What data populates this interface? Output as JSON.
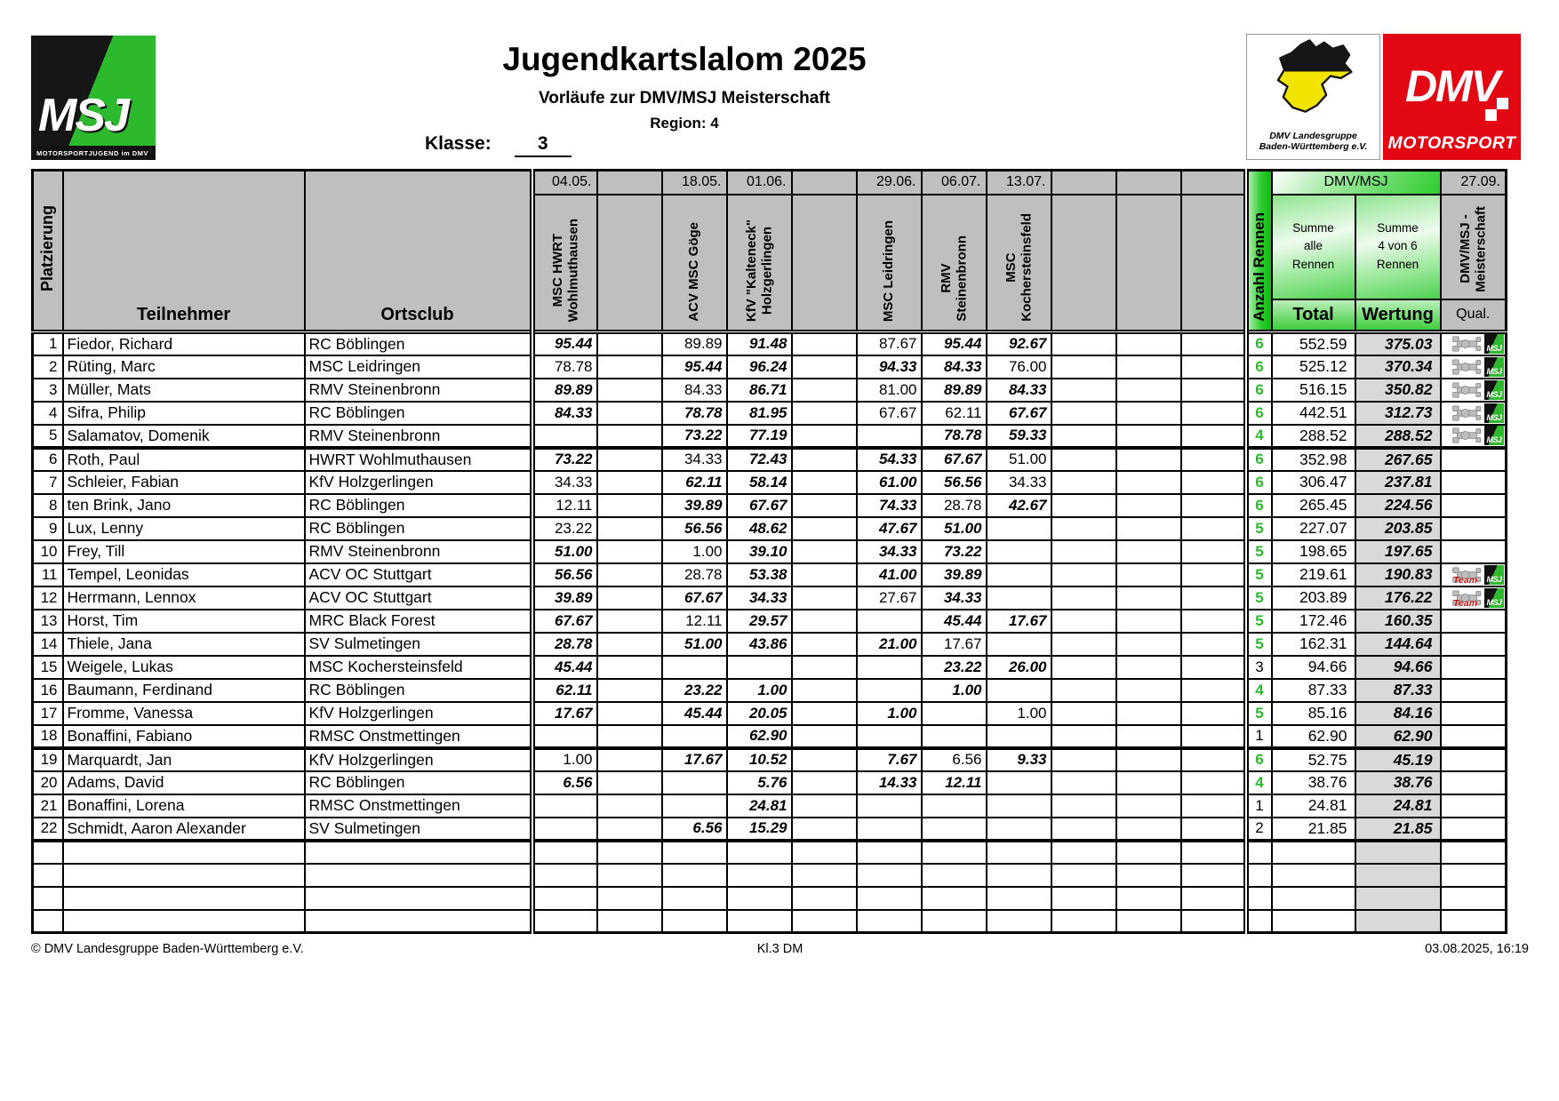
{
  "header": {
    "title": "Jugendkartslalom 2025",
    "subtitle": "Vorläufe zur DMV/MSJ Meisterschaft",
    "region": "Region: 4",
    "klasse_label": "Klasse:",
    "klasse_value": "3",
    "msj_logo": {
      "text": "MSJ",
      "sub": "MOTORSPORTJUGEND im DMV"
    },
    "bw_logo": {
      "line1": "DMV Landesgruppe",
      "line2": "Baden-Württemberg e.V.",
      "colors": {
        "top": "#161616",
        "bottom": "#f0e400"
      }
    },
    "dmv_logo": {
      "text": "DMV",
      "sub": "MOTORSPORT",
      "color": "#e30613"
    }
  },
  "icons": {
    "msj_badge": "MSJ",
    "team_label": "Team"
  },
  "table": {
    "platzierung_label": "Platzierung",
    "teilnehmer_label": "Teilnehmer",
    "ortsclub_label": "Ortsclub",
    "anzahl_label": "Anzahl Rennen",
    "dmvmsj_label": "DMV/MSJ",
    "summe_alle": "Summe\nalle\nRennen",
    "summe_4von6": "Summe\n4 von 6\nRennen",
    "total_label": "Total",
    "wertung_label": "Wertung",
    "last_col": {
      "date": "27.09.",
      "club": "DMV/MSJ -\nMeisterschaft",
      "qual": "Qual."
    },
    "accent_green": "#2db92d",
    "race_columns": [
      {
        "date": "04.05.",
        "club": "MSC HWRT\nWohlmuthausen"
      },
      {
        "date": "",
        "club": ""
      },
      {
        "date": "18.05.",
        "club": "ACV MSC Göge"
      },
      {
        "date": "01.06.",
        "club": "KfV \"Kalteneck\"\nHolzgerlingen"
      },
      {
        "date": "",
        "club": ""
      },
      {
        "date": "29.06.",
        "club": "MSC Leidringen"
      },
      {
        "date": "06.07.",
        "club": "RMV\nSteinenbronn"
      },
      {
        "date": "13.07.",
        "club": "MSC\nKochersteinsfeld"
      },
      {
        "date": "",
        "club": ""
      },
      {
        "date": "",
        "club": ""
      },
      {
        "date": "",
        "club": ""
      }
    ],
    "rows": [
      {
        "rank": "1",
        "name": "Fiedor, Richard",
        "club": "RC Böblingen",
        "scores": [
          {
            "v": "95.44",
            "b": 1
          },
          null,
          {
            "v": "89.89",
            "b": 0
          },
          {
            "v": "91.48",
            "b": 1
          },
          null,
          {
            "v": "87.67",
            "b": 0
          },
          {
            "v": "95.44",
            "b": 1
          },
          {
            "v": "92.67",
            "b": 1
          },
          null,
          null,
          null
        ],
        "races": "6",
        "races_green": 1,
        "total": "552.59",
        "wertung": "375.03",
        "qual": "kart-msj",
        "cutoff": false
      },
      {
        "rank": "2",
        "name": "Rüting, Marc",
        "club": "MSC Leidringen",
        "scores": [
          {
            "v": "78.78",
            "b": 0
          },
          null,
          {
            "v": "95.44",
            "b": 1
          },
          {
            "v": "96.24",
            "b": 1
          },
          null,
          {
            "v": "94.33",
            "b": 1
          },
          {
            "v": "84.33",
            "b": 1
          },
          {
            "v": "76.00",
            "b": 0
          },
          null,
          null,
          null
        ],
        "races": "6",
        "races_green": 1,
        "total": "525.12",
        "wertung": "370.34",
        "qual": "kart-msj",
        "cutoff": false
      },
      {
        "rank": "3",
        "name": "Müller, Mats",
        "club": "RMV Steinenbronn",
        "scores": [
          {
            "v": "89.89",
            "b": 1
          },
          null,
          {
            "v": "84.33",
            "b": 0
          },
          {
            "v": "86.71",
            "b": 1
          },
          null,
          {
            "v": "81.00",
            "b": 0
          },
          {
            "v": "89.89",
            "b": 1
          },
          {
            "v": "84.33",
            "b": 1
          },
          null,
          null,
          null
        ],
        "races": "6",
        "races_green": 1,
        "total": "516.15",
        "wertung": "350.82",
        "qual": "kart-msj",
        "cutoff": false
      },
      {
        "rank": "4",
        "name": "Sifra, Philip",
        "club": "RC Böblingen",
        "scores": [
          {
            "v": "84.33",
            "b": 1
          },
          null,
          {
            "v": "78.78",
            "b": 1
          },
          {
            "v": "81.95",
            "b": 1
          },
          null,
          {
            "v": "67.67",
            "b": 0
          },
          {
            "v": "62.11",
            "b": 0
          },
          {
            "v": "67.67",
            "b": 1
          },
          null,
          null,
          null
        ],
        "races": "6",
        "races_green": 1,
        "total": "442.51",
        "wertung": "312.73",
        "qual": "kart-msj",
        "cutoff": false
      },
      {
        "rank": "5",
        "name": "Salamatov, Domenik",
        "club": "RMV Steinenbronn",
        "scores": [
          null,
          null,
          {
            "v": "73.22",
            "b": 1
          },
          {
            "v": "77.19",
            "b": 1
          },
          null,
          null,
          {
            "v": "78.78",
            "b": 1
          },
          {
            "v": "59.33",
            "b": 1
          },
          null,
          null,
          null
        ],
        "races": "4",
        "races_green": 1,
        "total": "288.52",
        "wertung": "288.52",
        "qual": "kart-msj",
        "cutoff": true
      },
      {
        "rank": "6",
        "name": "Roth, Paul",
        "club": "HWRT Wohlmuthausen",
        "scores": [
          {
            "v": "73.22",
            "b": 1
          },
          null,
          {
            "v": "34.33",
            "b": 0
          },
          {
            "v": "72.43",
            "b": 1
          },
          null,
          {
            "v": "54.33",
            "b": 1
          },
          {
            "v": "67.67",
            "b": 1
          },
          {
            "v": "51.00",
            "b": 0
          },
          null,
          null,
          null
        ],
        "races": "6",
        "races_green": 1,
        "total": "352.98",
        "wertung": "267.65",
        "qual": "",
        "cutoff": false
      },
      {
        "rank": "7",
        "name": "Schleier, Fabian",
        "club": "KfV Holzgerlingen",
        "scores": [
          {
            "v": "34.33",
            "b": 0
          },
          null,
          {
            "v": "62.11",
            "b": 1
          },
          {
            "v": "58.14",
            "b": 1
          },
          null,
          {
            "v": "61.00",
            "b": 1
          },
          {
            "v": "56.56",
            "b": 1
          },
          {
            "v": "34.33",
            "b": 0
          },
          null,
          null,
          null
        ],
        "races": "6",
        "races_green": 1,
        "total": "306.47",
        "wertung": "237.81",
        "qual": "",
        "cutoff": false
      },
      {
        "rank": "8",
        "name": "ten Brink, Jano",
        "club": "RC Böblingen",
        "scores": [
          {
            "v": "12.11",
            "b": 0
          },
          null,
          {
            "v": "39.89",
            "b": 1
          },
          {
            "v": "67.67",
            "b": 1
          },
          null,
          {
            "v": "74.33",
            "b": 1
          },
          {
            "v": "28.78",
            "b": 0
          },
          {
            "v": "42.67",
            "b": 1
          },
          null,
          null,
          null
        ],
        "races": "6",
        "races_green": 1,
        "total": "265.45",
        "wertung": "224.56",
        "qual": "",
        "cutoff": false
      },
      {
        "rank": "9",
        "name": "Lux, Lenny",
        "club": "RC Böblingen",
        "scores": [
          {
            "v": "23.22",
            "b": 0
          },
          null,
          {
            "v": "56.56",
            "b": 1
          },
          {
            "v": "48.62",
            "b": 1
          },
          null,
          {
            "v": "47.67",
            "b": 1
          },
          {
            "v": "51.00",
            "b": 1
          },
          null,
          null,
          null,
          null
        ],
        "races": "5",
        "races_green": 1,
        "total": "227.07",
        "wertung": "203.85",
        "qual": "",
        "cutoff": false
      },
      {
        "rank": "10",
        "name": "Frey, Till",
        "club": "RMV Steinenbronn",
        "scores": [
          {
            "v": "51.00",
            "b": 1
          },
          null,
          {
            "v": "1.00",
            "b": 0
          },
          {
            "v": "39.10",
            "b": 1
          },
          null,
          {
            "v": "34.33",
            "b": 1
          },
          {
            "v": "73.22",
            "b": 1
          },
          null,
          null,
          null,
          null
        ],
        "races": "5",
        "races_green": 1,
        "total": "198.65",
        "wertung": "197.65",
        "qual": "",
        "cutoff": false
      },
      {
        "rank": "11",
        "name": "Tempel, Leonidas",
        "club": "ACV OC Stuttgart",
        "scores": [
          {
            "v": "56.56",
            "b": 1
          },
          null,
          {
            "v": "28.78",
            "b": 0
          },
          {
            "v": "53.38",
            "b": 1
          },
          null,
          {
            "v": "41.00",
            "b": 1
          },
          {
            "v": "39.89",
            "b": 1
          },
          null,
          null,
          null,
          null
        ],
        "races": "5",
        "races_green": 1,
        "total": "219.61",
        "wertung": "190.83",
        "qual": "team-msj",
        "cutoff": false
      },
      {
        "rank": "12",
        "name": "Herrmann, Lennox",
        "club": "ACV OC Stuttgart",
        "scores": [
          {
            "v": "39.89",
            "b": 1
          },
          null,
          {
            "v": "67.67",
            "b": 1
          },
          {
            "v": "34.33",
            "b": 1
          },
          null,
          {
            "v": "27.67",
            "b": 0
          },
          {
            "v": "34.33",
            "b": 1
          },
          null,
          null,
          null,
          null
        ],
        "races": "5",
        "races_green": 1,
        "total": "203.89",
        "wertung": "176.22",
        "qual": "team-msj",
        "cutoff": false
      },
      {
        "rank": "13",
        "name": "Horst, Tim",
        "club": "MRC Black Forest",
        "scores": [
          {
            "v": "67.67",
            "b": 1
          },
          null,
          {
            "v": "12.11",
            "b": 0
          },
          {
            "v": "29.57",
            "b": 1
          },
          null,
          null,
          {
            "v": "45.44",
            "b": 1
          },
          {
            "v": "17.67",
            "b": 1
          },
          null,
          null,
          null
        ],
        "races": "5",
        "races_green": 1,
        "total": "172.46",
        "wertung": "160.35",
        "qual": "",
        "cutoff": false
      },
      {
        "rank": "14",
        "name": "Thiele, Jana",
        "club": "SV Sulmetingen",
        "scores": [
          {
            "v": "28.78",
            "b": 1
          },
          null,
          {
            "v": "51.00",
            "b": 1
          },
          {
            "v": "43.86",
            "b": 1
          },
          null,
          {
            "v": "21.00",
            "b": 1
          },
          {
            "v": "17.67",
            "b": 0
          },
          null,
          null,
          null,
          null
        ],
        "races": "5",
        "races_green": 1,
        "total": "162.31",
        "wertung": "144.64",
        "qual": "",
        "cutoff": false
      },
      {
        "rank": "15",
        "name": "Weigele, Lukas",
        "club": "MSC Kochersteinsfeld",
        "scores": [
          {
            "v": "45.44",
            "b": 1
          },
          null,
          null,
          null,
          null,
          null,
          {
            "v": "23.22",
            "b": 1
          },
          {
            "v": "26.00",
            "b": 1
          },
          null,
          null,
          null
        ],
        "races": "3",
        "races_green": 0,
        "total": "94.66",
        "wertung": "94.66",
        "qual": "",
        "cutoff": false
      },
      {
        "rank": "16",
        "name": "Baumann, Ferdinand",
        "club": "RC Böblingen",
        "scores": [
          {
            "v": "62.11",
            "b": 1
          },
          null,
          {
            "v": "23.22",
            "b": 1
          },
          {
            "v": "1.00",
            "b": 1
          },
          null,
          null,
          {
            "v": "1.00",
            "b": 1
          },
          null,
          null,
          null,
          null
        ],
        "races": "4",
        "races_green": 1,
        "total": "87.33",
        "wertung": "87.33",
        "qual": "",
        "cutoff": false
      },
      {
        "rank": "17",
        "name": "Fromme, Vanessa",
        "club": "KfV Holzgerlingen",
        "scores": [
          {
            "v": "17.67",
            "b": 1
          },
          null,
          {
            "v": "45.44",
            "b": 1
          },
          {
            "v": "20.05",
            "b": 1
          },
          null,
          {
            "v": "1.00",
            "b": 1
          },
          null,
          {
            "v": "1.00",
            "b": 0
          },
          null,
          null,
          null
        ],
        "races": "5",
        "races_green": 1,
        "total": "85.16",
        "wertung": "84.16",
        "qual": "",
        "cutoff": false
      },
      {
        "rank": "18",
        "name": "Bonaffini, Fabiano",
        "club": "RMSC Onstmettingen",
        "scores": [
          null,
          null,
          null,
          {
            "v": "62.90",
            "b": 1
          },
          null,
          null,
          null,
          null,
          null,
          null,
          null
        ],
        "races": "1",
        "races_green": 0,
        "total": "62.90",
        "wertung": "62.90",
        "qual": "",
        "cutoff": true
      },
      {
        "rank": "19",
        "name": "Marquardt, Jan",
        "club": "KfV Holzgerlingen",
        "scores": [
          {
            "v": "1.00",
            "b": 0
          },
          null,
          {
            "v": "17.67",
            "b": 1
          },
          {
            "v": "10.52",
            "b": 1
          },
          null,
          {
            "v": "7.67",
            "b": 1
          },
          {
            "v": "6.56",
            "b": 0
          },
          {
            "v": "9.33",
            "b": 1
          },
          null,
          null,
          null
        ],
        "races": "6",
        "races_green": 1,
        "total": "52.75",
        "wertung": "45.19",
        "qual": "",
        "cutoff": false
      },
      {
        "rank": "20",
        "name": "Adams, David",
        "club": "RC Böblingen",
        "scores": [
          {
            "v": "6.56",
            "b": 1
          },
          null,
          null,
          {
            "v": "5.76",
            "b": 1
          },
          null,
          {
            "v": "14.33",
            "b": 1
          },
          {
            "v": "12.11",
            "b": 1
          },
          null,
          null,
          null,
          null
        ],
        "races": "4",
        "races_green": 1,
        "total": "38.76",
        "wertung": "38.76",
        "qual": "",
        "cutoff": false
      },
      {
        "rank": "21",
        "name": "Bonaffini, Lorena",
        "club": "RMSC Onstmettingen",
        "scores": [
          null,
          null,
          null,
          {
            "v": "24.81",
            "b": 1
          },
          null,
          null,
          null,
          null,
          null,
          null,
          null
        ],
        "races": "1",
        "races_green": 0,
        "total": "24.81",
        "wertung": "24.81",
        "qual": "",
        "cutoff": false
      },
      {
        "rank": "22",
        "name": "Schmidt, Aaron Alexander",
        "club": "SV Sulmetingen",
        "scores": [
          null,
          null,
          {
            "v": "6.56",
            "b": 1
          },
          {
            "v": "15.29",
            "b": 1
          },
          null,
          null,
          null,
          null,
          null,
          null,
          null
        ],
        "races": "2",
        "races_green": 0,
        "total": "21.85",
        "wertung": "21.85",
        "qual": "",
        "cutoff": true
      },
      {
        "rank": "",
        "name": "",
        "club": "",
        "scores": [
          null,
          null,
          null,
          null,
          null,
          null,
          null,
          null,
          null,
          null,
          null
        ],
        "races": "",
        "races_green": 0,
        "total": "",
        "wertung": "",
        "qual": "",
        "cutoff": false
      },
      {
        "rank": "",
        "name": "",
        "club": "",
        "scores": [
          null,
          null,
          null,
          null,
          null,
          null,
          null,
          null,
          null,
          null,
          null
        ],
        "races": "",
        "races_green": 0,
        "total": "",
        "wertung": "",
        "qual": "",
        "cutoff": false
      },
      {
        "rank": "",
        "name": "",
        "club": "",
        "scores": [
          null,
          null,
          null,
          null,
          null,
          null,
          null,
          null,
          null,
          null,
          null
        ],
        "races": "",
        "races_green": 0,
        "total": "",
        "wertung": "",
        "qual": "",
        "cutoff": false
      },
      {
        "rank": "",
        "name": "",
        "club": "",
        "scores": [
          null,
          null,
          null,
          null,
          null,
          null,
          null,
          null,
          null,
          null,
          null
        ],
        "races": "",
        "races_green": 0,
        "total": "",
        "wertung": "",
        "qual": "",
        "cutoff": false
      }
    ]
  },
  "footer": {
    "left": "© DMV Landesgruppe Baden-Württemberg e.V.",
    "center": "Kl.3 DM",
    "right": "03.08.2025, 16:19"
  }
}
